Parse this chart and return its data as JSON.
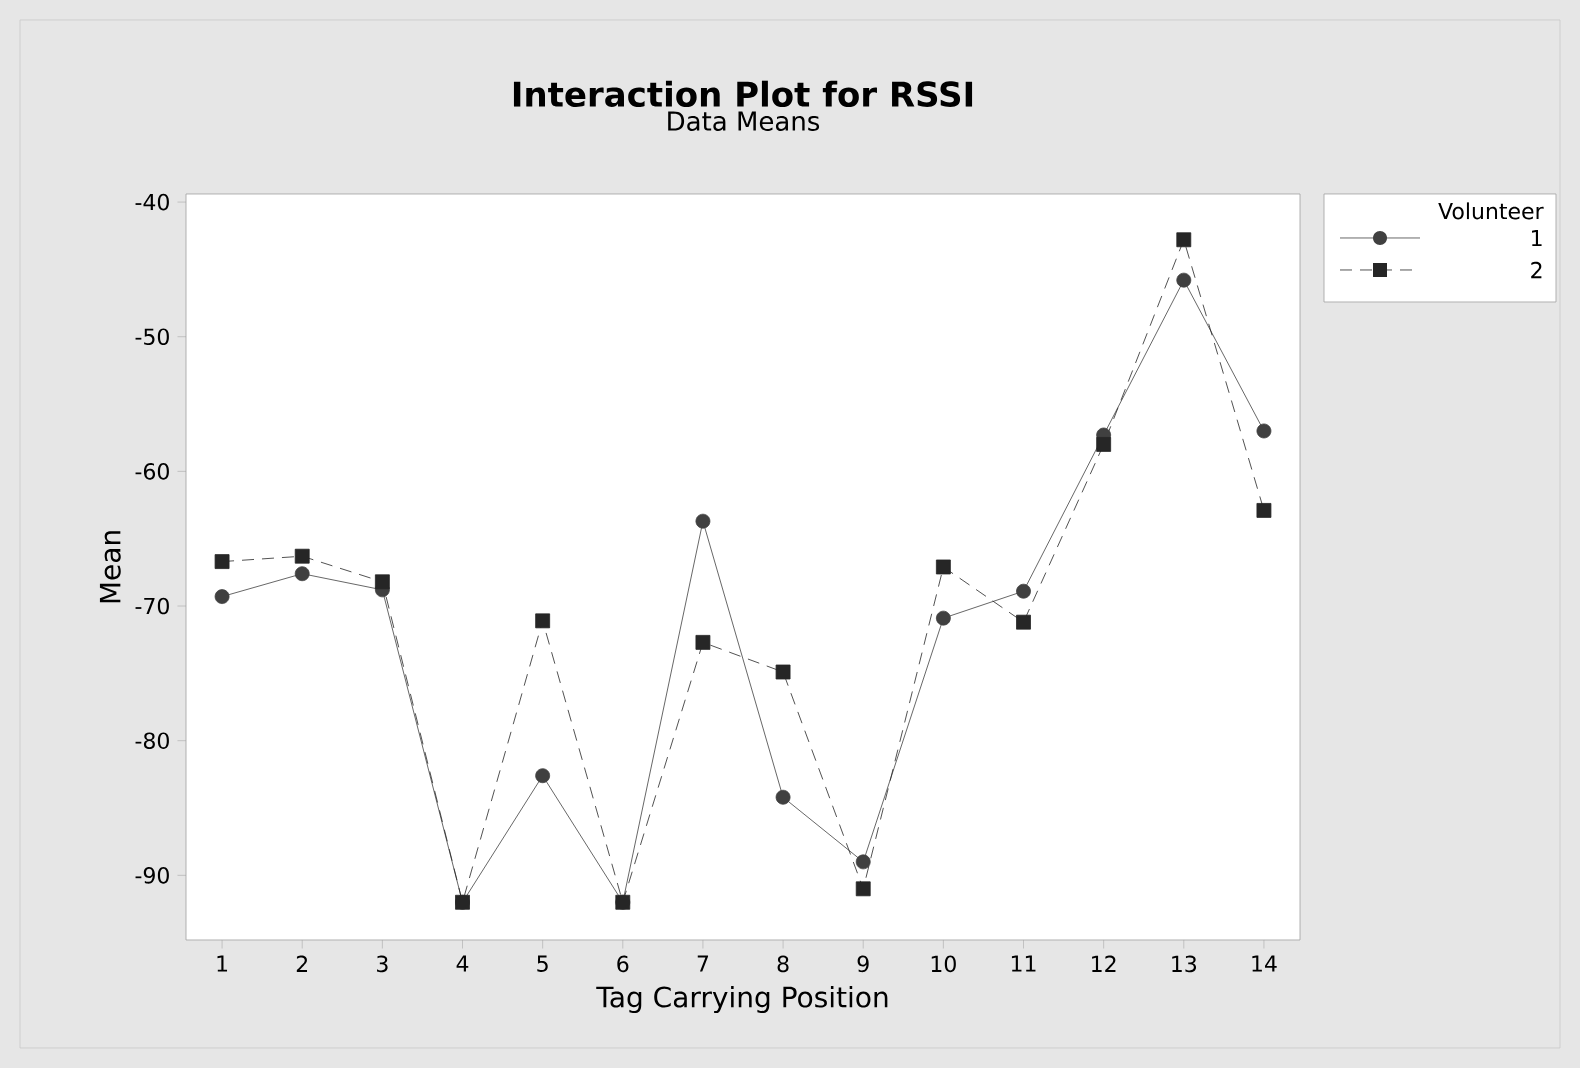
{
  "chart_data": {
    "type": "line",
    "title": "Interaction Plot for RSSI",
    "subtitle": "Data Means",
    "xlabel": "Tag Carrying Position",
    "ylabel": "Mean",
    "legend_title": "Volunteer",
    "legend": "top right",
    "grid": false,
    "categories": [
      "1",
      "2",
      "3",
      "4",
      "5",
      "6",
      "7",
      "8",
      "9",
      "10",
      "11",
      "12",
      "13",
      "14"
    ],
    "ylim": [
      -94.8,
      -39.4
    ],
    "yticks": [
      -90,
      -80,
      -70,
      -60,
      -50,
      -40
    ],
    "series": [
      {
        "name": "1",
        "color": "#404040",
        "marker": "circle",
        "line_style": "solid",
        "values": [
          -69.3,
          -67.6,
          -68.8,
          -92,
          -82.6,
          -92,
          -63.7,
          -84.2,
          -89.0,
          -70.9,
          -68.9,
          -57.3,
          -45.8,
          -57.0
        ]
      },
      {
        "name": "2",
        "color": "#262626",
        "marker": "square",
        "line_style": "dashed",
        "values": [
          -66.7,
          -66.3,
          -68.2,
          -92,
          -71.1,
          -92,
          -72.7,
          -74.9,
          -91.0,
          -67.1,
          -71.2,
          -58.0,
          -42.8,
          -62.9
        ]
      }
    ]
  }
}
